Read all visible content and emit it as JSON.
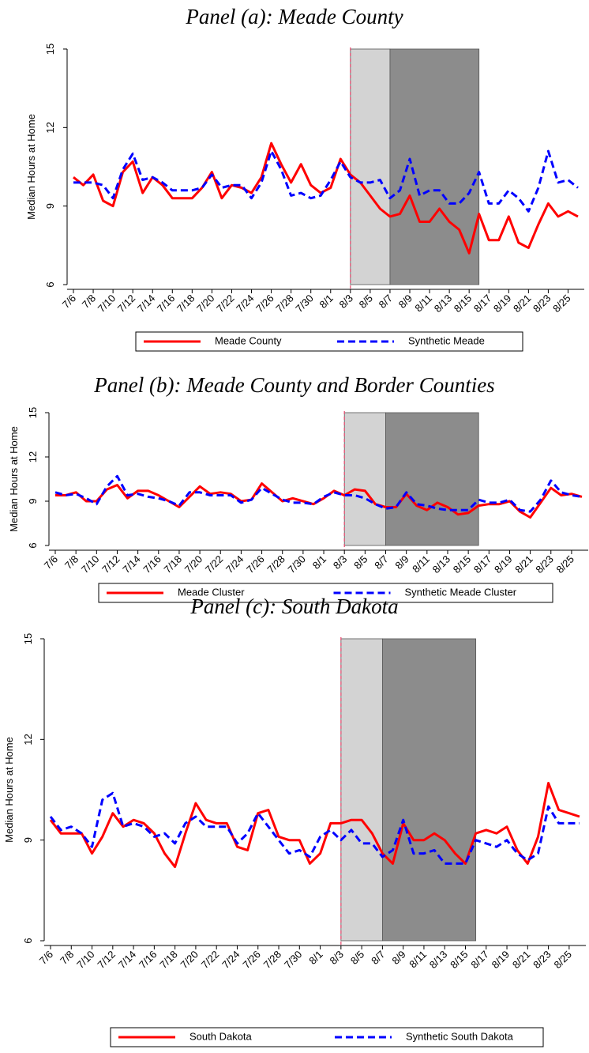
{
  "chart_data": [
    {
      "type": "line",
      "title": "Panel (a): Meade County",
      "ylabel": "Median Hours at Home",
      "categories": [
        "7/6",
        null,
        "7/8",
        null,
        "7/10",
        null,
        "7/12",
        null,
        "7/14",
        null,
        "7/16",
        null,
        "7/18",
        null,
        "7/20",
        null,
        "7/22",
        null,
        "7/24",
        null,
        "7/26",
        null,
        "7/28",
        null,
        "7/30",
        null,
        "8/1",
        null,
        "8/3",
        null,
        "8/5",
        null,
        "8/7",
        null,
        "8/9",
        null,
        "8/11",
        null,
        "8/13",
        null,
        "8/15",
        null,
        "8/17",
        null,
        "8/19",
        null,
        "8/21",
        null,
        "8/23",
        null,
        "8/25",
        null
      ],
      "series": [
        {
          "name": "Meade County",
          "color": "#ff0000",
          "dash": "solid",
          "values": [
            10.1,
            9.8,
            10.2,
            9.2,
            9.0,
            10.3,
            10.7,
            9.5,
            10.1,
            9.8,
            9.3,
            9.3,
            9.3,
            9.7,
            10.3,
            9.3,
            9.8,
            9.7,
            9.5,
            10.1,
            11.4,
            10.6,
            9.9,
            10.6,
            9.8,
            9.5,
            9.7,
            10.8,
            10.2,
            9.9,
            9.4,
            8.9,
            8.6,
            8.7,
            9.4,
            8.4,
            8.4,
            8.9,
            8.4,
            8.1,
            7.2,
            8.7,
            7.7,
            7.7,
            8.6,
            7.6,
            7.4,
            8.3,
            9.1,
            8.6,
            8.8,
            8.6
          ]
        },
        {
          "name": "Synthetic Meade",
          "color": "#0000ff",
          "dash": "dashed",
          "values": [
            9.9,
            9.9,
            9.9,
            9.8,
            9.3,
            10.4,
            11.0,
            10.0,
            10.1,
            9.9,
            9.6,
            9.6,
            9.6,
            9.7,
            10.2,
            9.7,
            9.8,
            9.8,
            9.3,
            9.9,
            11.1,
            10.4,
            9.4,
            9.5,
            9.3,
            9.4,
            10.0,
            10.7,
            10.1,
            9.9,
            9.9,
            10.0,
            9.3,
            9.6,
            10.8,
            9.4,
            9.6,
            9.6,
            9.1,
            9.1,
            9.5,
            10.3,
            9.1,
            9.1,
            9.6,
            9.3,
            8.8,
            9.7,
            11.1,
            9.9,
            10.0,
            9.7
          ]
        }
      ],
      "ylim": [
        6,
        15
      ],
      "yticks": [
        6,
        9,
        12,
        15
      ],
      "event_line": 28,
      "event_color": "#e8496e",
      "shaded_spans": [
        {
          "start": 28,
          "end": 32,
          "color": "#d3d3d3"
        },
        {
          "start": 32,
          "end": 41,
          "color": "#8c8c8c"
        }
      ]
    },
    {
      "type": "line",
      "title": "Panel (b): Meade County and Border Counties",
      "ylabel": "Median Hours at Home",
      "categories": [
        "7/6",
        null,
        "7/8",
        null,
        "7/10",
        null,
        "7/12",
        null,
        "7/14",
        null,
        "7/16",
        null,
        "7/18",
        null,
        "7/20",
        null,
        "7/22",
        null,
        "7/24",
        null,
        "7/26",
        null,
        "7/28",
        null,
        "7/30",
        null,
        "8/1",
        null,
        "8/3",
        null,
        "8/5",
        null,
        "8/7",
        null,
        "8/9",
        null,
        "8/11",
        null,
        "8/13",
        null,
        "8/15",
        null,
        "8/17",
        null,
        "8/19",
        null,
        "8/21",
        null,
        "8/23",
        null,
        "8/25",
        null
      ],
      "series": [
        {
          "name": "Meade Cluster",
          "color": "#ff0000",
          "dash": "solid",
          "values": [
            9.4,
            9.4,
            9.6,
            9.0,
            9.0,
            9.8,
            10.1,
            9.2,
            9.7,
            9.7,
            9.4,
            9.0,
            8.6,
            9.3,
            10.0,
            9.5,
            9.6,
            9.5,
            9.0,
            9.1,
            10.2,
            9.6,
            9.0,
            9.2,
            9.0,
            8.8,
            9.2,
            9.7,
            9.4,
            9.8,
            9.7,
            8.8,
            8.6,
            8.6,
            9.5,
            8.7,
            8.4,
            8.9,
            8.6,
            8.1,
            8.2,
            8.7,
            8.8,
            8.8,
            9.0,
            8.3,
            7.9,
            8.9,
            9.9,
            9.4,
            9.5,
            9.3
          ]
        },
        {
          "name": "Synthetic Meade Cluster",
          "color": "#0000ff",
          "dash": "dashed",
          "values": [
            9.6,
            9.4,
            9.5,
            9.2,
            8.8,
            10.0,
            10.7,
            9.4,
            9.5,
            9.3,
            9.2,
            9.0,
            8.7,
            9.6,
            9.6,
            9.4,
            9.4,
            9.4,
            8.9,
            9.1,
            9.9,
            9.5,
            9.1,
            8.9,
            8.9,
            8.8,
            9.3,
            9.6,
            9.4,
            9.4,
            9.2,
            8.8,
            8.5,
            8.6,
            9.6,
            8.8,
            8.7,
            8.5,
            8.4,
            8.4,
            8.4,
            9.1,
            8.9,
            8.9,
            9.1,
            8.4,
            8.3,
            9.1,
            10.4,
            9.6,
            9.4,
            9.3
          ]
        }
      ],
      "ylim": [
        6,
        15
      ],
      "yticks": [
        6,
        9,
        12,
        15
      ],
      "event_line": 28,
      "event_color": "#e8496e",
      "shaded_spans": [
        {
          "start": 28,
          "end": 32,
          "color": "#d3d3d3"
        },
        {
          "start": 32,
          "end": 41,
          "color": "#8c8c8c"
        }
      ]
    },
    {
      "type": "line",
      "title": "Panel (c): South Dakota",
      "ylabel": "Median Hours at Home",
      "categories": [
        "7/6",
        null,
        "7/8",
        null,
        "7/10",
        null,
        "7/12",
        null,
        "7/14",
        null,
        "7/16",
        null,
        "7/18",
        null,
        "7/20",
        null,
        "7/22",
        null,
        "7/24",
        null,
        "7/26",
        null,
        "7/28",
        null,
        "7/30",
        null,
        "8/1",
        null,
        "8/3",
        null,
        "8/5",
        null,
        "8/7",
        null,
        "8/9",
        null,
        "8/11",
        null,
        "8/13",
        null,
        "8/15",
        null,
        "8/17",
        null,
        "8/19",
        null,
        "8/21",
        null,
        "8/23",
        null,
        "8/25",
        null
      ],
      "series": [
        {
          "name": "South Dakota",
          "color": "#ff0000",
          "dash": "solid",
          "values": [
            9.6,
            9.2,
            9.2,
            9.2,
            8.6,
            9.1,
            9.8,
            9.4,
            9.6,
            9.5,
            9.2,
            8.6,
            8.2,
            9.2,
            10.1,
            9.6,
            9.5,
            9.5,
            8.8,
            8.7,
            9.8,
            9.9,
            9.1,
            9.0,
            9.0,
            8.3,
            8.6,
            9.5,
            9.5,
            9.6,
            9.6,
            9.2,
            8.6,
            8.3,
            9.5,
            9.0,
            9.0,
            9.2,
            9.0,
            8.6,
            8.3,
            9.2,
            9.3,
            9.2,
            9.4,
            8.7,
            8.3,
            9.1,
            10.7,
            9.9,
            9.8,
            9.7
          ]
        },
        {
          "name": "Synthetic South Dakota",
          "color": "#0000ff",
          "dash": "dashed",
          "values": [
            9.7,
            9.3,
            9.4,
            9.2,
            8.8,
            10.2,
            10.4,
            9.4,
            9.5,
            9.4,
            9.1,
            9.2,
            8.9,
            9.5,
            9.7,
            9.4,
            9.4,
            9.4,
            8.9,
            9.2,
            9.8,
            9.4,
            9.0,
            8.6,
            8.7,
            8.5,
            9.1,
            9.3,
            9.0,
            9.3,
            8.9,
            8.9,
            8.5,
            8.7,
            9.6,
            8.6,
            8.6,
            8.7,
            8.3,
            8.3,
            8.3,
            9.0,
            8.9,
            8.8,
            9.0,
            8.6,
            8.4,
            8.6,
            10.0,
            9.5,
            9.5,
            9.5
          ]
        }
      ],
      "ylim": [
        6,
        15
      ],
      "yticks": [
        6,
        9,
        12,
        15
      ],
      "event_line": 28,
      "event_color": "#e8496e",
      "shaded_spans": [
        {
          "start": 28,
          "end": 32,
          "color": "#d3d3d3"
        },
        {
          "start": 32,
          "end": 41,
          "color": "#8c8c8c"
        }
      ]
    }
  ]
}
